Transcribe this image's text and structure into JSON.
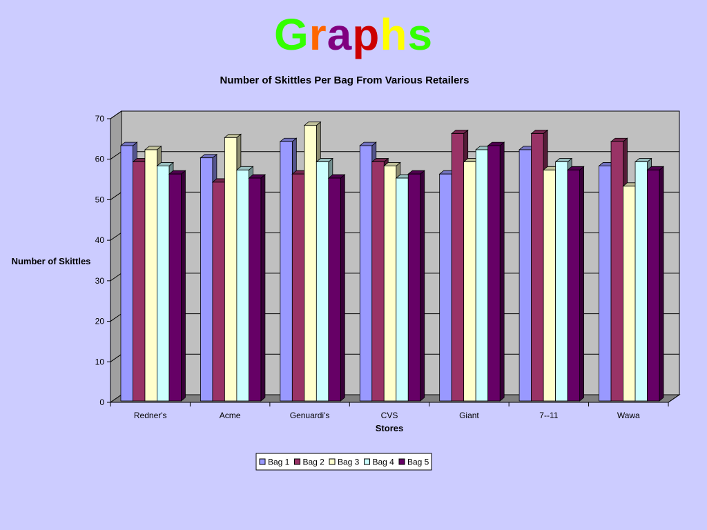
{
  "slide": {
    "title_letters": [
      {
        "char": "G",
        "color": "#33ff00"
      },
      {
        "char": "r",
        "color": "#ff6600"
      },
      {
        "char": "a",
        "color": "#800080"
      },
      {
        "char": "p",
        "color": "#cc0000"
      },
      {
        "char": "h",
        "color": "#ffff00"
      },
      {
        "char": "s",
        "color": "#33ff00"
      }
    ]
  },
  "chart_data": {
    "type": "bar",
    "title": "Number of Skittles Per Bag From Various Retailers",
    "xlabel": "Stores",
    "ylabel": "Number of Skittles",
    "ylim": [
      0,
      70
    ],
    "yticks": [
      0,
      10,
      20,
      30,
      40,
      50,
      60,
      70
    ],
    "grid": true,
    "legend_position": "bottom",
    "categories": [
      "Redner's",
      "Acme",
      "Genuardi's",
      "CVS",
      "Giant",
      "7--11",
      "Wawa"
    ],
    "series": [
      {
        "name": "Bag 1",
        "color": "#9999ff",
        "values": [
          63,
          60,
          64,
          63,
          56,
          62,
          58
        ]
      },
      {
        "name": "Bag 2",
        "color": "#993366",
        "values": [
          59,
          54,
          56,
          59,
          66,
          66,
          64
        ]
      },
      {
        "name": "Bag 3",
        "color": "#ffffcc",
        "values": [
          62,
          65,
          68,
          58,
          59,
          57,
          53
        ]
      },
      {
        "name": "Bag 4",
        "color": "#ccffff",
        "values": [
          58,
          57,
          59,
          55,
          62,
          59,
          59
        ]
      },
      {
        "name": "Bag 5",
        "color": "#660066",
        "values": [
          56,
          55,
          55,
          56,
          63,
          57,
          57
        ]
      }
    ]
  }
}
